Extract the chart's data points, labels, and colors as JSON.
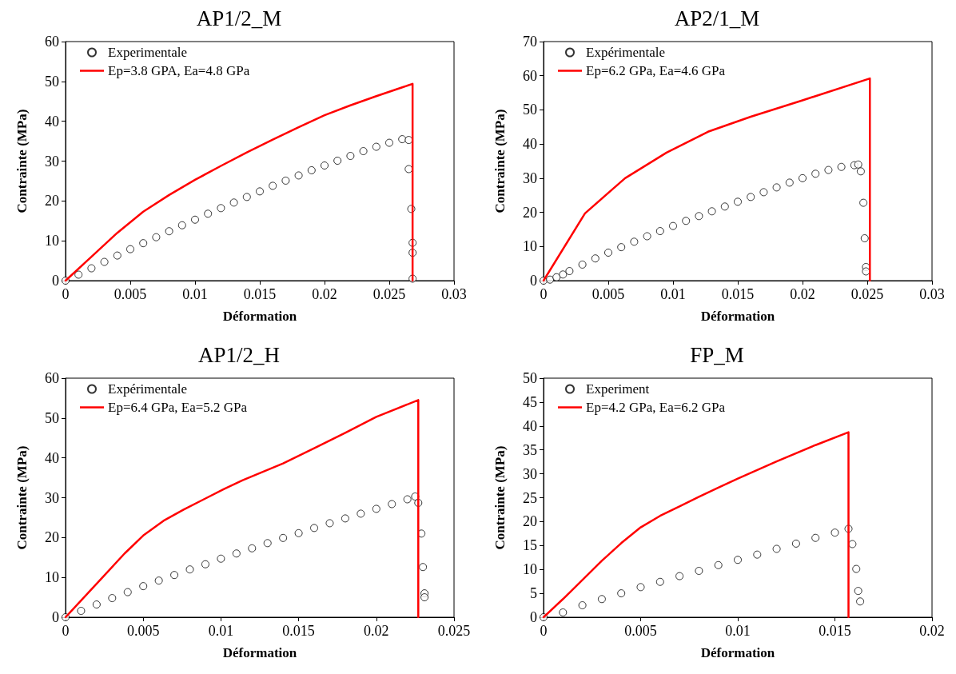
{
  "chart_data": [
    {
      "type": "scatter",
      "title": "AP1/2_M",
      "xlabel": "Déformation",
      "ylabel": "Contrainte (MPa)",
      "xlim": [
        0,
        0.03
      ],
      "xticks": [
        0,
        0.005,
        0.01,
        0.015,
        0.02,
        0.025,
        0.03
      ],
      "ylim": [
        0,
        60
      ],
      "yticks": [
        0,
        10,
        20,
        30,
        40,
        50,
        60
      ],
      "grid": false,
      "legend": "top left",
      "series": [
        {
          "name": "Experimentale",
          "marker": "circle",
          "color": "#000000",
          "x": [
            0,
            0.001,
            0.002,
            0.003,
            0.004,
            0.005,
            0.006,
            0.007,
            0.008,
            0.009,
            0.01,
            0.011,
            0.012,
            0.013,
            0.014,
            0.015,
            0.016,
            0.017,
            0.018,
            0.019,
            0.02,
            0.021,
            0.022,
            0.023,
            0.024,
            0.025,
            0.026,
            0.0265,
            0.0265,
            0.0267,
            0.0268,
            0.0268,
            0.0268
          ],
          "values": [
            0,
            1.5,
            3.1,
            4.7,
            6.3,
            7.9,
            9.4,
            10.9,
            12.4,
            13.9,
            15.3,
            16.8,
            18.2,
            19.6,
            21.0,
            22.4,
            23.8,
            25.1,
            26.4,
            27.7,
            28.9,
            30.1,
            31.3,
            32.5,
            33.6,
            34.6,
            35.5,
            35.3,
            28,
            18,
            9.5,
            7,
            0.5
          ]
        },
        {
          "name": "Ep=3.8 GPA, Ea=4.8 GPa",
          "type": "line",
          "marker": "none",
          "line_style": "solid",
          "color": "#ff0000",
          "x": [
            0,
            0.002,
            0.004,
            0.006,
            0.008,
            0.01,
            0.012,
            0.014,
            0.016,
            0.018,
            0.02,
            0.022,
            0.024,
            0.026,
            0.0268,
            0.0268
          ],
          "values": [
            0,
            6,
            12,
            17.3,
            21.5,
            25.3,
            28.8,
            32.2,
            35.4,
            38.5,
            41.5,
            44,
            46.3,
            48.5,
            49.4,
            0
          ]
        }
      ]
    },
    {
      "type": "scatter",
      "title": "AP2/1_M",
      "xlabel": "Déformation",
      "ylabel": "Contrainte (MPa)",
      "xlim": [
        0,
        0.03
      ],
      "xticks": [
        0,
        0.005,
        0.01,
        0.015,
        0.02,
        0.025,
        0.03
      ],
      "ylim": [
        0,
        70
      ],
      "yticks": [
        0,
        10,
        20,
        30,
        40,
        50,
        60,
        70
      ],
      "grid": false,
      "legend": "top left",
      "series": [
        {
          "name": "Expérimentale",
          "marker": "circle",
          "color": "#000000",
          "x": [
            0,
            0.0005,
            0.001,
            0.0015,
            0.002,
            0.003,
            0.004,
            0.005,
            0.006,
            0.007,
            0.008,
            0.009,
            0.01,
            0.011,
            0.012,
            0.013,
            0.014,
            0.015,
            0.016,
            0.017,
            0.018,
            0.019,
            0.02,
            0.021,
            0.022,
            0.023,
            0.024,
            0.0243,
            0.0245,
            0.0247,
            0.0248,
            0.0249,
            0.0249
          ],
          "values": [
            0,
            0.3,
            1,
            1.8,
            2.8,
            4.7,
            6.5,
            8.2,
            9.8,
            11.4,
            13,
            14.5,
            16,
            17.5,
            18.9,
            20.3,
            21.7,
            23.1,
            24.5,
            25.9,
            27.3,
            28.7,
            30,
            31.3,
            32.4,
            33.3,
            33.8,
            34,
            32,
            22.8,
            12.4,
            4,
            2.7
          ]
        },
        {
          "name": "Ep=6.2 GPa, Ea=4.6 GPa",
          "type": "line",
          "marker": "none",
          "line_style": "solid",
          "color": "#ff0000",
          "x": [
            0,
            0.0032,
            0.0063,
            0.0095,
            0.0127,
            0.016,
            0.02,
            0.0252,
            0.0252
          ],
          "values": [
            0,
            19.7,
            30,
            37.5,
            43.6,
            48,
            52.8,
            59.2,
            0
          ]
        }
      ]
    },
    {
      "type": "scatter",
      "title": "AP1/2_H",
      "xlabel": "Déformation",
      "ylabel": "Contrainte (MPa)",
      "xlim": [
        0,
        0.025
      ],
      "xticks": [
        0,
        0.005,
        0.01,
        0.015,
        0.02,
        0.025
      ],
      "ylim": [
        0,
        60
      ],
      "yticks": [
        0,
        10,
        20,
        30,
        40,
        50,
        60
      ],
      "grid": false,
      "legend": "top left",
      "series": [
        {
          "name": "Expérimentale",
          "marker": "circle",
          "color": "#000000",
          "x": [
            0,
            0.001,
            0.002,
            0.003,
            0.004,
            0.005,
            0.006,
            0.007,
            0.008,
            0.009,
            0.01,
            0.011,
            0.012,
            0.013,
            0.014,
            0.015,
            0.016,
            0.017,
            0.018,
            0.019,
            0.02,
            0.021,
            0.022,
            0.0225,
            0.0227,
            0.0229,
            0.023,
            0.0231,
            0.0231
          ],
          "values": [
            0,
            1.6,
            3.2,
            4.8,
            6.3,
            7.8,
            9.2,
            10.6,
            12,
            13.3,
            14.7,
            16,
            17.3,
            18.6,
            19.9,
            21.1,
            22.4,
            23.6,
            24.8,
            26,
            27.2,
            28.4,
            29.6,
            30.3,
            28.7,
            21,
            12.6,
            6,
            5
          ]
        },
        {
          "name": "Ep=6.4 GPa, Ea=5.2 GPa",
          "type": "line",
          "marker": "none",
          "line_style": "solid",
          "color": "#ff0000",
          "x": [
            0,
            0.0025,
            0.0038,
            0.005,
            0.0063,
            0.0076,
            0.0089,
            0.0102,
            0.0114,
            0.0127,
            0.014,
            0.016,
            0.018,
            0.02,
            0.0227,
            0.0227
          ],
          "values": [
            0,
            10.5,
            16,
            20.5,
            24.2,
            27,
            29.6,
            32.2,
            34.4,
            36.5,
            38.6,
            42.4,
            46.3,
            50.3,
            54.5,
            0
          ]
        }
      ]
    },
    {
      "type": "scatter",
      "title": "FP_M",
      "xlabel": "Déformation",
      "ylabel": "Contrainte (MPa)",
      "xlim": [
        0,
        0.02
      ],
      "xticks": [
        0,
        0.005,
        0.01,
        0.015,
        0.02
      ],
      "ylim": [
        0,
        50
      ],
      "yticks": [
        0,
        5,
        10,
        15,
        20,
        25,
        30,
        35,
        40,
        45,
        50
      ],
      "grid": false,
      "legend": "top left",
      "series": [
        {
          "name": "Experiment",
          "marker": "circle",
          "color": "#000000",
          "x": [
            0,
            0.001,
            0.002,
            0.003,
            0.004,
            0.005,
            0.006,
            0.007,
            0.008,
            0.009,
            0.01,
            0.011,
            0.012,
            0.013,
            0.014,
            0.015,
            0.0157,
            0.0159,
            0.0161,
            0.0162,
            0.0163
          ],
          "values": [
            0,
            1,
            2.5,
            3.8,
            5,
            6.3,
            7.4,
            8.6,
            9.7,
            10.9,
            12,
            13.1,
            14.3,
            15.4,
            16.6,
            17.7,
            18.5,
            15.3,
            10.1,
            5.5,
            3.3
          ]
        },
        {
          "name": "Ep=4.2 GPa, Ea=6.2 GPa",
          "type": "line",
          "marker": "none",
          "line_style": "solid",
          "color": "#ff0000",
          "x": [
            0,
            0.001,
            0.002,
            0.003,
            0.004,
            0.005,
            0.006,
            0.007,
            0.008,
            0.009,
            0.01,
            0.012,
            0.014,
            0.0157,
            0.0157
          ],
          "values": [
            0,
            3.8,
            7.8,
            11.8,
            15.5,
            18.8,
            21.2,
            23.2,
            25.2,
            27.1,
            29,
            32.6,
            36,
            38.7,
            0
          ]
        }
      ]
    }
  ]
}
